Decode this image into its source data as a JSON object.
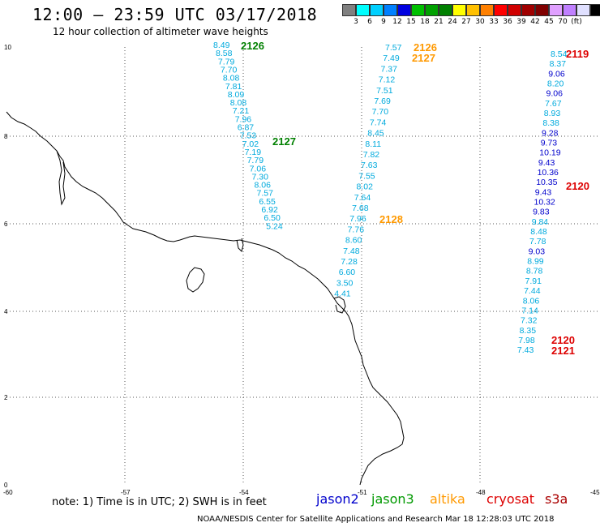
{
  "header": {
    "title": "12:00 – 23:59 UTC 03/17/2018",
    "subtitle": "12 hour collection of altimeter wave heights"
  },
  "colorbar": {
    "colors": [
      "#808080",
      "#00ffff",
      "#00d0ff",
      "#0080ff",
      "#0000e0",
      "#00c000",
      "#00a000",
      "#008000",
      "#ffff00",
      "#ffc000",
      "#ff8000",
      "#ff0000",
      "#d00000",
      "#a00000",
      "#800000",
      "#e0a0ff",
      "#c080ff",
      "#e0e0ff",
      "#000000"
    ],
    "labels": [
      "3",
      "6",
      "9",
      "12",
      "15",
      "18",
      "21",
      "24",
      "27",
      "30",
      "33",
      "36",
      "39",
      "42",
      "45",
      "70",
      "(ft)"
    ]
  },
  "axes": {
    "x_ticks": [
      "-60",
      "-57",
      "-54",
      "-51",
      "-48",
      "-45"
    ],
    "y_ticks": [
      "0",
      "2",
      "4",
      "6",
      "8",
      "10"
    ]
  },
  "tracks": [
    {
      "color": "#00aadd",
      "values": [
        "8.49",
        "8.58",
        "7.79",
        "7.70",
        "8.08",
        "7.81",
        "8.09",
        "8.08",
        "7.21",
        "7.96",
        "6.87",
        "7.53",
        "7.02",
        "7.19",
        "7.79",
        "7.06",
        "7.30",
        "8.06",
        "7.57",
        "6.55",
        "6.92",
        "6.50",
        "5.24"
      ]
    },
    {
      "color": "#00aadd",
      "values": [
        "7.57",
        "7.49",
        "7.37",
        "7.12",
        "7.51",
        "7.69",
        "7.70",
        "7.74",
        "8.45",
        "8.11",
        "7.82",
        "7.63",
        "7.55",
        "8.02",
        "7.64",
        "7.68",
        "7.96",
        "7.76",
        "8.60",
        "7.48",
        "7.28",
        "6.60",
        "3.50",
        "4.41"
      ]
    },
    {
      "values": [
        "8.54",
        "8.37",
        "9.06",
        "8.20",
        "9.06",
        "7.67",
        "8.93",
        "8.38",
        "9.28",
        "9.73",
        "10.19",
        "9.43",
        "10.36",
        "10.35",
        "9.43",
        "10.32",
        "9.83",
        "9.84",
        "8.48",
        "7.78",
        "9.03",
        "8.99",
        "8.78",
        "7.91",
        "7.44",
        "8.06",
        "7.14",
        "7.32",
        "8.35",
        "7.98",
        "7.43"
      ]
    }
  ],
  "passes": [
    {
      "label": "2126",
      "color": "#008000"
    },
    {
      "label": "2127",
      "color": "#008000"
    },
    {
      "label": "2126",
      "color": "#ff9900"
    },
    {
      "label": "2127",
      "color": "#ff9900"
    },
    {
      "label": "2128",
      "color": "#ff9900"
    },
    {
      "label": "2119",
      "color": "#dd0000"
    },
    {
      "label": "2120",
      "color": "#dd0000"
    },
    {
      "label": "2120",
      "color": "#dd0000"
    },
    {
      "label": "2121",
      "color": "#dd0000"
    }
  ],
  "legend": {
    "note": "note: 1) Time is in UTC; 2) SWH is in feet",
    "satellites": [
      {
        "name": "jason2",
        "color": "#0000cc"
      },
      {
        "name": "jason3",
        "color": "#009900"
      },
      {
        "name": "altika",
        "color": "#ff9900"
      },
      {
        "name": "cryosat",
        "color": "#dd0000"
      },
      {
        "name": "s3a",
        "color": "#aa0000"
      }
    ]
  },
  "footer": "NOAA/NESDIS Center for Satellite Applications and Research   Mar 18 12:28:03 UTC 2018"
}
